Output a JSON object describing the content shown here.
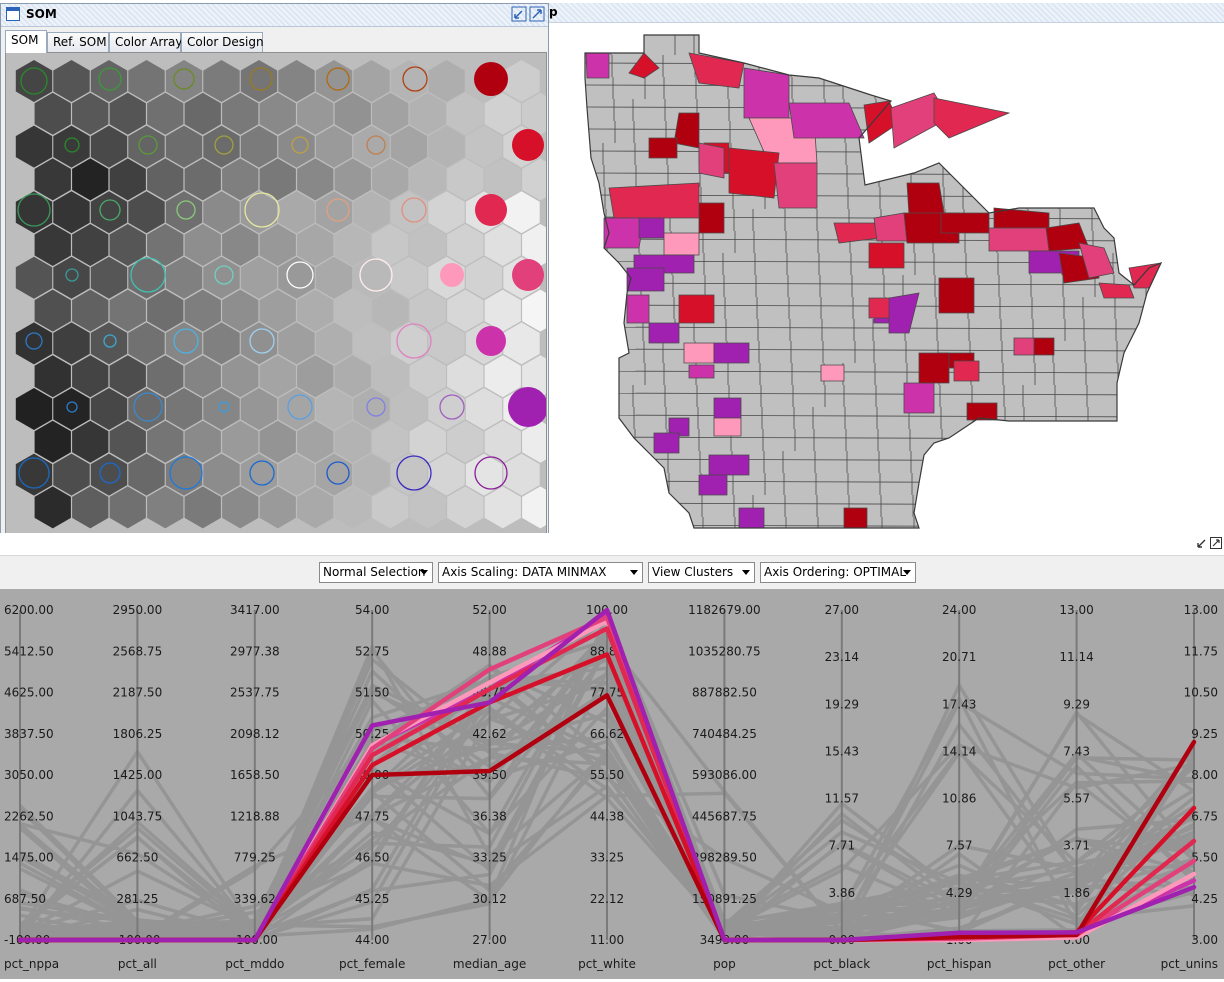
{
  "som_window": {
    "title": "SOM",
    "tabs": [
      "SOM",
      "Ref. SOM",
      "Color Array",
      "Color Design"
    ],
    "active_tab": 0
  },
  "map_panel": {
    "title_fragment": "p"
  },
  "toolbar": {
    "selection_mode": "Normal Selection",
    "axis_scaling": "Axis Scaling: DATA MINMAX",
    "view_mode": "View Clusters",
    "axis_ordering": "Axis Ordering: OPTIMAL"
  },
  "colors": {
    "dark_red": "#b00010",
    "red": "#d7102a",
    "crimson": "#e02850",
    "pink": "#e2407a",
    "light_pink": "#ff99bb",
    "magenta": "#cc33aa",
    "purple": "#a020b0",
    "gray": "#c0c0c0",
    "pcp_background": "#a9a9a9"
  },
  "axes": [
    {
      "name": "pct_nppa",
      "ticks": [
        "6200.00",
        "5412.50",
        "4625.00",
        "3837.50",
        "3050.00",
        "2262.50",
        "1475.00",
        "687.50",
        "-100.00"
      ]
    },
    {
      "name": "pct_all",
      "ticks": [
        "2950.00",
        "2568.75",
        "2187.50",
        "1806.25",
        "1425.00",
        "1043.75",
        "662.50",
        "281.25",
        "-100.00"
      ]
    },
    {
      "name": "pct_mddo",
      "ticks": [
        "3417.00",
        "2977.38",
        "2537.75",
        "2098.12",
        "1658.50",
        "1218.88",
        "779.25",
        "339.62",
        "-100.00"
      ]
    },
    {
      "name": "pct_female",
      "ticks": [
        "54.00",
        "52.75",
        "51.50",
        "50.25",
        "49.00",
        "47.75",
        "46.50",
        "45.25",
        "44.00"
      ]
    },
    {
      "name": "median_age",
      "ticks": [
        "52.00",
        "48.88",
        "45.75",
        "42.62",
        "39.50",
        "36.38",
        "33.25",
        "30.12",
        "27.00"
      ]
    },
    {
      "name": "pct_white",
      "ticks": [
        "100.00",
        "88.88",
        "77.75",
        "66.62",
        "55.50",
        "44.38",
        "33.25",
        "22.12",
        "11.00"
      ]
    },
    {
      "name": "pop",
      "ticks": [
        "1182679.00",
        "1035280.75",
        "887882.50",
        "740484.25",
        "593086.00",
        "445687.75",
        "298289.50",
        "150891.25",
        "3493.00"
      ]
    },
    {
      "name": "pct_black",
      "ticks": [
        "27.00",
        "23.14",
        "19.29",
        "15.43",
        "11.57",
        "7.71",
        "3.86",
        "0.00"
      ]
    },
    {
      "name": "pct_hispan",
      "ticks": [
        "24.00",
        "20.71",
        "17.43",
        "14.14",
        "10.86",
        "7.57",
        "4.29",
        "1.00"
      ]
    },
    {
      "name": "pct_other",
      "ticks": [
        "13.00",
        "11.14",
        "9.29",
        "7.43",
        "5.57",
        "3.71",
        "1.86",
        "0.00"
      ]
    },
    {
      "name": "pct_unins",
      "ticks": [
        "13.00",
        "11.75",
        "10.50",
        "9.25",
        "8.00",
        "6.75",
        "5.50",
        "4.25",
        "3.00"
      ]
    }
  ],
  "highlighted_lines": [
    {
      "color": "#a020b0",
      "values": [
        -100,
        -100,
        -100,
        50.5,
        45.0,
        100,
        3493,
        0,
        1.5,
        0.3,
        4.6
      ]
    },
    {
      "color": "#b00010",
      "values": [
        -100,
        -100,
        -100,
        49.0,
        39.8,
        77.0,
        3493,
        0,
        1.2,
        0.2,
        9.0
      ]
    },
    {
      "color": "#d7102a",
      "values": [
        -100,
        -100,
        -100,
        49.3,
        45.0,
        88.0,
        3493,
        0,
        1.3,
        0.3,
        7.0
      ]
    },
    {
      "color": "#e02850",
      "values": [
        -100,
        -100,
        -100,
        49.6,
        46.0,
        95.0,
        3493,
        0,
        1.2,
        0.2,
        6.0
      ]
    },
    {
      "color": "#e2407a",
      "values": [
        -100,
        -100,
        -100,
        49.8,
        47.5,
        98.0,
        3493,
        0,
        1.1,
        0.2,
        5.4
      ]
    },
    {
      "color": "#ff99bb",
      "values": [
        -100,
        -100,
        -100,
        49.9,
        46.5,
        97.0,
        3493,
        0,
        1.0,
        0.1,
        5.0
      ]
    },
    {
      "color": "#cc33aa",
      "values": [
        -100,
        -100,
        -100,
        49.9,
        46.0,
        99.0,
        3493,
        0,
        1.4,
        0.3,
        4.8
      ]
    }
  ]
}
